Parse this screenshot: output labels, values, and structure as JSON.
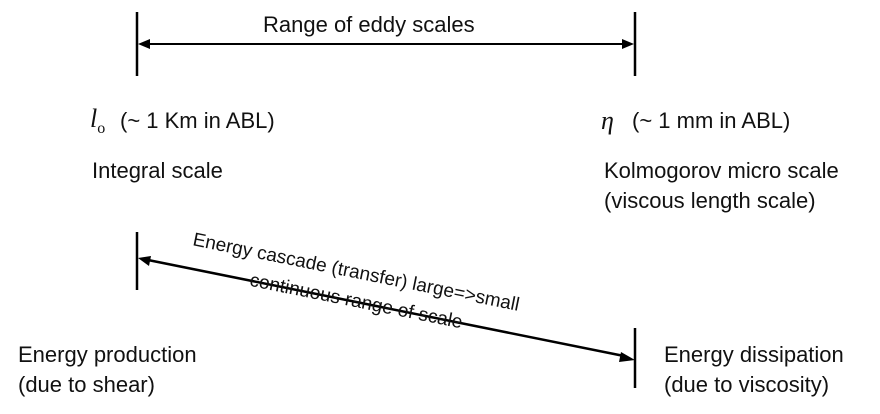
{
  "top": {
    "range_label": "Range of eddy scales"
  },
  "left": {
    "symbol": "l",
    "symbol_sub": "o",
    "size_note": "(~ 1 Km in ABL)",
    "scale_name": "Integral scale",
    "energy_line1": "Energy production",
    "energy_line2": "(due to shear)"
  },
  "right": {
    "symbol": "η",
    "size_note": "(~ 1 mm in ABL)",
    "scale_line1": "Kolmogorov micro scale",
    "scale_line2": "(viscous length scale)",
    "energy_line1": "Energy dissipation",
    "energy_line2": "(due to viscosity)"
  },
  "cascade": {
    "upper_label": "Energy cascade (transfer) large=>small",
    "lower_label": "continuous range of scale"
  }
}
